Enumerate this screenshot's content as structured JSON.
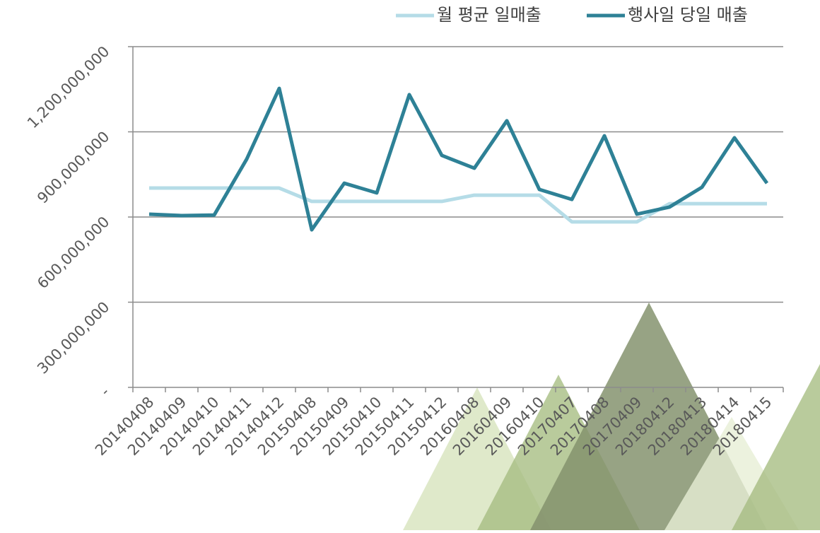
{
  "chart_data": {
    "type": "line",
    "categories": [
      "20140408",
      "20140409",
      "20140410",
      "20140411",
      "20140412",
      "20150408",
      "20150409",
      "20150410",
      "20150411",
      "20150412",
      "20160408",
      "20160409",
      "20160410",
      "20170407",
      "20170408",
      "20170409",
      "20180412",
      "20180413",
      "20180414",
      "20180415"
    ],
    "series": [
      {
        "name": "월 평균 일매출",
        "color": "#b5dce7",
        "values": [
          702000000,
          702000000,
          702000000,
          702000000,
          702000000,
          655000000,
          655000000,
          655000000,
          655000000,
          655000000,
          677000000,
          677000000,
          677000000,
          583000000,
          583000000,
          583000000,
          647000000,
          647000000,
          647000000,
          647000000
        ]
      },
      {
        "name": "행사일 당일 매출",
        "color": "#2e8196",
        "values": [
          610000000,
          605000000,
          607000000,
          804000000,
          1053000000,
          555000000,
          719000000,
          685000000,
          1031000000,
          817000000,
          772000000,
          939000000,
          697000000,
          662000000,
          886000000,
          610000000,
          635000000,
          705000000,
          879000000,
          719000000
        ]
      }
    ],
    "ylim": [
      0,
      1200000000
    ],
    "yticks": [
      {
        "value": 0,
        "label": "-"
      },
      {
        "value": 300000000,
        "label": "300,000,000"
      },
      {
        "value": 600000000,
        "label": "600,000,000"
      },
      {
        "value": 900000000,
        "label": "900,000,000"
      },
      {
        "value": 1200000000,
        "label": "1,200,000,000"
      }
    ],
    "grid": true,
    "legend": "top-right"
  }
}
